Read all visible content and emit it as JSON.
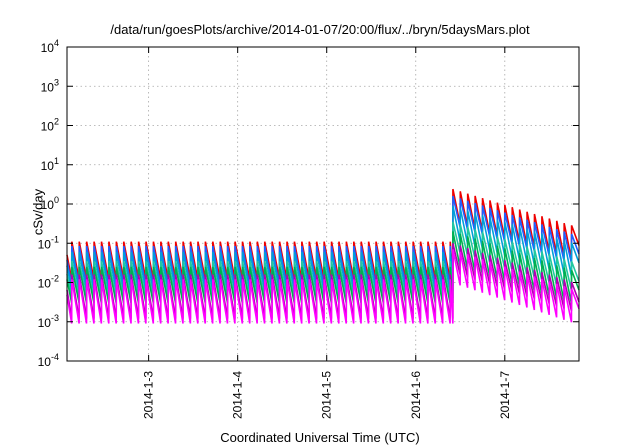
{
  "chart_data": {
    "type": "line",
    "title": "/data/run/goesPlots/archive/2014-01-07/20:00/flux/../bryn/5daysMars.plot",
    "xlabel": "Coordinated Universal Time (UTC)",
    "ylabel": "cSv/day",
    "yscale": "log",
    "ylim": [
      0.0001,
      10000
    ],
    "y_ticks": [
      {
        "base": "10",
        "exp": "-4",
        "value": 0.0001
      },
      {
        "base": "10",
        "exp": "-3",
        "value": 0.001
      },
      {
        "base": "10",
        "exp": "-2",
        "value": 0.01
      },
      {
        "base": "10",
        "exp": "-1",
        "value": 0.1
      },
      {
        "base": "10",
        "exp": "0",
        "value": 1
      },
      {
        "base": "10",
        "exp": "1",
        "value": 10
      },
      {
        "base": "10",
        "exp": "2",
        "value": 100
      },
      {
        "base": "10",
        "exp": "3",
        "value": 1000
      },
      {
        "base": "10",
        "exp": "4",
        "value": 10000
      }
    ],
    "xlim": [
      "2014-01-02T02:00",
      "2014-01-07T20:00"
    ],
    "x_ticks": [
      "2014-1-3",
      "2014-1-4",
      "2014-1-5",
      "2014-1-6",
      "2014-1-7"
    ],
    "x_tick_dates": [
      "2014-01-03",
      "2014-01-04",
      "2014-01-05",
      "2014-01-06",
      "2014-01-07"
    ],
    "grid": true,
    "sawtooth_period_hours": 2,
    "step_time": "2014-01-06T10:00",
    "series": [
      {
        "color": "#ee0000",
        "peak_before": 0.11,
        "trough_before": 0.012,
        "peak_after": 2.4,
        "peak_end": 0.25,
        "trough_ratio_after": 0.14
      },
      {
        "color": "#1f5fff",
        "peak_before": 0.085,
        "trough_before": 0.008,
        "peak_after": 1.6,
        "peak_end": 0.15,
        "trough_ratio_after": 0.14
      },
      {
        "color": "#00a0d8",
        "peak_before": 0.06,
        "trough_before": 0.006,
        "peak_after": 0.9,
        "peak_end": 0.09,
        "trough_ratio_after": 0.14
      },
      {
        "color": "#20c8a0",
        "peak_before": 0.035,
        "trough_before": 0.004,
        "peak_after": 0.35,
        "peak_end": 0.03,
        "trough_ratio_after": 0.14
      },
      {
        "color": "#00b050",
        "peak_before": 0.025,
        "trough_before": 0.003,
        "peak_after": 0.2,
        "peak_end": 0.018,
        "trough_ratio_after": 0.14
      },
      {
        "color": "#b000b0",
        "peak_before": 0.016,
        "trough_before": 0.0012,
        "peak_after": 0.1,
        "peak_end": 0.009,
        "trough_ratio_after": 0.14
      },
      {
        "color": "#ff00ff",
        "peak_before": 0.012,
        "trough_before": 0.0009,
        "peak_after": 0.07,
        "peak_end": 0.006,
        "trough_ratio_after": 0.14
      }
    ]
  }
}
